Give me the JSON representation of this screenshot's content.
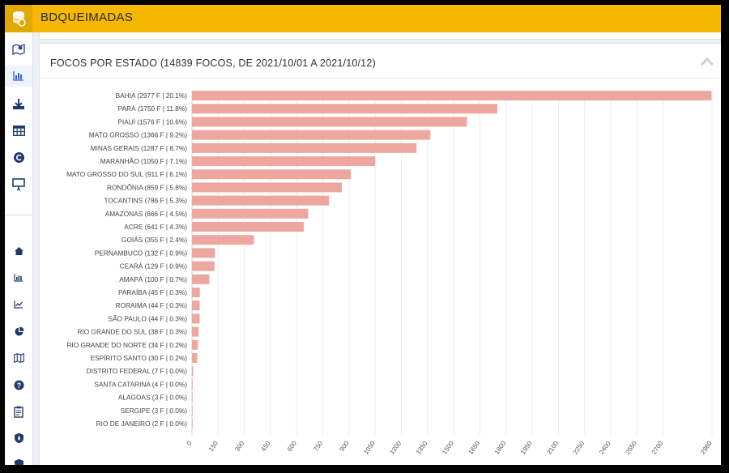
{
  "app": {
    "title": "BDQUEIMADAS"
  },
  "panel": {
    "title": "FOCOS POR ESTADO (14839 FOCOS, DE 2021/10/01 A 2021/10/12)"
  },
  "sidebar": {
    "top_icons": [
      "map-marker-icon",
      "bar-chart-icon",
      "download-icon",
      "table-icon",
      "copyright-icon",
      "monitor-icon"
    ],
    "bottom_icons": [
      "home-icon",
      "bar-chart-small-icon",
      "line-chart-icon",
      "pie-chart-icon",
      "map-icon",
      "help-icon",
      "clipboard-icon",
      "shield-icon",
      "badge-icon"
    ]
  },
  "colors": {
    "bar": "#eea79e",
    "topbar": "#f5b800",
    "accent": "#2e63d6"
  },
  "chart_data": {
    "type": "bar",
    "orientation": "horizontal",
    "title": "FOCOS POR ESTADO (14839 FOCOS, DE 2021/10/01 A 2021/10/12)",
    "categories": [
      "BAHIA (2977 F | 20.1%)",
      "PARÁ (1750 F | 11.8%)",
      "PIAUÍ (1576 F | 10.6%)",
      "MATO GROSSO (1366 F | 9.2%)",
      "MINAS GERAIS (1287 F | 8.7%)",
      "MARANHÃO (1050 F | 7.1%)",
      "MATO GROSSO DO SUL (911 F | 6.1%)",
      "RONDÔNIA (859 F | 5.8%)",
      "TOCANTINS (786 F | 5.3%)",
      "AMAZONAS (666 F | 4.5%)",
      "ACRE (641 F | 4.3%)",
      "GOIÁS (355 F | 2.4%)",
      "PERNAMBUCO (132 F | 0.9%)",
      "CEARÁ (129 F | 0.9%)",
      "AMAPÁ (100 F | 0.7%)",
      "PARAÍBA (45 F | 0.3%)",
      "RORAIMA (44 F | 0.3%)",
      "SÃO PAULO (44 F | 0.3%)",
      "RIO GRANDE DO SUL (38 F | 0.3%)",
      "RIO GRANDE DO NORTE (34 F | 0.2%)",
      "ESPÍRITO SANTO (30 F | 0.2%)",
      "DISTRITO FEDERAL (7 F | 0.0%)",
      "SANTA CATARINA (4 F | 0.0%)",
      "ALAGOAS (3 F | 0.0%)",
      "SERGIPE (3 F | 0.0%)",
      "RIO DE JANEIRO (2 F | 0.0%)"
    ],
    "values": [
      2977,
      1750,
      1576,
      1366,
      1287,
      1050,
      911,
      859,
      786,
      666,
      641,
      355,
      132,
      129,
      100,
      45,
      44,
      44,
      38,
      34,
      30,
      7,
      4,
      3,
      3,
      2
    ],
    "xticks": [
      0,
      150,
      300,
      450,
      600,
      750,
      900,
      1050,
      1200,
      1350,
      1500,
      1650,
      1800,
      1950,
      2100,
      2250,
      2400,
      2550,
      2700,
      2980
    ],
    "xlim": [
      0,
      2980
    ],
    "grid": true,
    "xlabel": "",
    "ylabel": ""
  }
}
